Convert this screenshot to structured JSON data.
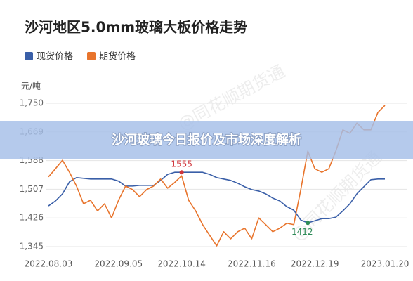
{
  "chart_data": {
    "type": "line",
    "title": "沙河地区5.0mm玻璃大板价格走势",
    "y_unit": "元/吨",
    "watermark": "@同花顺期货通",
    "banner": "沙河玻璃今日报价及市场深度解析",
    "categories": [
      "2022.08.03",
      null,
      null,
      null,
      null,
      null,
      null,
      null,
      null,
      null,
      "2022.09.05",
      null,
      null,
      null,
      null,
      null,
      null,
      null,
      null,
      "2022.10.14",
      null,
      null,
      null,
      null,
      null,
      null,
      null,
      null,
      null,
      "2022.11.16",
      null,
      null,
      null,
      null,
      null,
      null,
      null,
      null,
      "2022.12.19",
      null,
      null,
      null,
      null,
      null,
      null,
      null,
      null,
      null,
      "2023.01.20"
    ],
    "series": [
      {
        "name": "现货价格",
        "color": "#3a5fa8",
        "values": [
          1460,
          1474,
          1494,
          1528,
          1540,
          1538,
          1536,
          1536,
          1536,
          1536,
          1530,
          1516,
          1516,
          1518,
          1518,
          1518,
          1532,
          1549,
          1555,
          1555,
          1555,
          1555,
          1555,
          1549,
          1540,
          1536,
          1532,
          1524,
          1514,
          1506,
          1502,
          1494,
          1482,
          1474,
          1458,
          1448,
          1420,
          1412,
          1418,
          1424,
          1424,
          1428,
          1446,
          1466,
          1494,
          1514,
          1534,
          1536,
          1536
        ],
        "value_labels": [
          null,
          null,
          null,
          null,
          null,
          null,
          null,
          null,
          null,
          null,
          null,
          null,
          null,
          null,
          null,
          null,
          null,
          null,
          null,
          "1555",
          null,
          null,
          null,
          null,
          null,
          null,
          null,
          null,
          null,
          null,
          null,
          null,
          null,
          null,
          null,
          null,
          null,
          "1412",
          null,
          null,
          null,
          null,
          null,
          null,
          null,
          null,
          null,
          null,
          null
        ]
      },
      {
        "name": "期货价格",
        "color": "#e8742c",
        "values": [
          1542,
          1565,
          1589,
          1555,
          1516,
          1466,
          1476,
          1446,
          1466,
          1426,
          1476,
          1516,
          1506,
          1486,
          1506,
          1516,
          1536,
          1510,
          1526,
          1545,
          1476,
          1446,
          1407,
          1377,
          1347,
          1387,
          1367,
          1387,
          1397,
          1367,
          1426,
          1407,
          1387,
          1397,
          1411,
          1407,
          1506,
          1615,
          1565,
          1555,
          1565,
          1615,
          1675,
          1665,
          1694,
          1675,
          1675,
          1724,
          1744
        ]
      }
    ],
    "ylim": [
      1345,
      1750
    ],
    "yticks": [
      {
        "value": 1345,
        "label": "1,345"
      },
      {
        "value": 1426,
        "label": "1,426"
      },
      {
        "value": 1507,
        "label": "1,507"
      },
      {
        "value": 1588,
        "label": "1,588"
      },
      {
        "value": 1669,
        "label": "1,669"
      },
      {
        "value": 1750,
        "label": "1,750"
      }
    ],
    "grid": true
  }
}
